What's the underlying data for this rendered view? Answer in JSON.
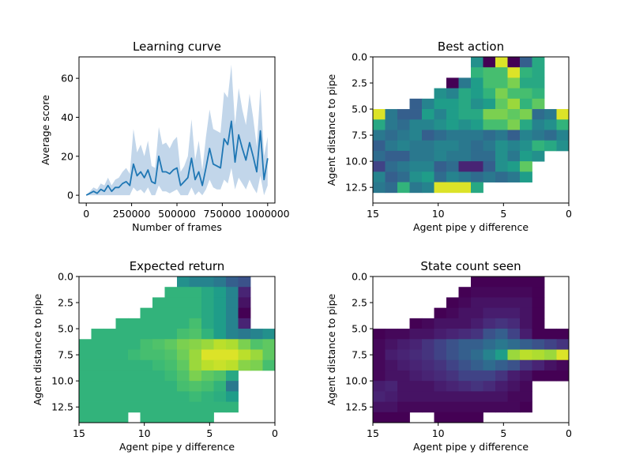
{
  "chart_data": [
    {
      "type": "line",
      "title": "Learning curve",
      "xlabel": "Number of frames",
      "ylabel": "Average score",
      "xlim": [
        -40000,
        1040000
      ],
      "ylim": [
        -4,
        71
      ],
      "xticks": [
        0,
        250000,
        500000,
        750000,
        1000000
      ],
      "yticks": [
        0,
        20,
        40,
        60
      ],
      "colors": {
        "line": "#1f77b4",
        "band": "#c2d6ea"
      },
      "series": [
        {
          "x": [
            0,
            20000,
            40000,
            60000,
            80000,
            100000,
            120000,
            140000,
            160000,
            180000,
            200000,
            220000,
            240000,
            260000,
            280000,
            300000,
            320000,
            340000,
            360000,
            380000,
            400000,
            420000,
            440000,
            460000,
            480000,
            500000,
            520000,
            540000,
            560000,
            580000,
            600000,
            620000,
            640000,
            660000,
            680000,
            700000,
            720000,
            740000,
            760000,
            780000,
            800000,
            820000,
            840000,
            860000,
            880000,
            900000,
            920000,
            940000,
            960000,
            980000,
            1000000
          ],
          "y": [
            0,
            1,
            2,
            1,
            3,
            2,
            5,
            2,
            4,
            4,
            6,
            7,
            5,
            16,
            10,
            12,
            9,
            13,
            7,
            6,
            20,
            12,
            12,
            11,
            13,
            14,
            5,
            7,
            9,
            19,
            8,
            12,
            5,
            14,
            24,
            16,
            15,
            14,
            29,
            26,
            38,
            17,
            31,
            24,
            18,
            27,
            20,
            12,
            33,
            8,
            19
          ],
          "lower": [
            0,
            0,
            0,
            0,
            0,
            0,
            0,
            0,
            0,
            0,
            0,
            0,
            0,
            4,
            2,
            3,
            1,
            4,
            0,
            0,
            5,
            2,
            2,
            1,
            2,
            3,
            0,
            0,
            0,
            4,
            0,
            2,
            0,
            3,
            8,
            4,
            3,
            3,
            8,
            6,
            14,
            3,
            9,
            6,
            3,
            8,
            4,
            1,
            10,
            0,
            5
          ],
          "upper": [
            0,
            2,
            4,
            3,
            6,
            5,
            9,
            5,
            8,
            9,
            12,
            14,
            11,
            34,
            22,
            26,
            20,
            28,
            15,
            14,
            35,
            26,
            27,
            24,
            28,
            30,
            12,
            15,
            20,
            39,
            18,
            28,
            13,
            30,
            44,
            34,
            33,
            32,
            53,
            50,
            67,
            36,
            55,
            44,
            36,
            52,
            40,
            25,
            55,
            20,
            30
          ]
        }
      ]
    },
    {
      "type": "heatmap",
      "title": "Best action",
      "xlabel": "Agent pipe y difference",
      "ylabel": "Agent distance to pipe",
      "colormap": "viridis",
      "xlim": [
        15,
        0
      ],
      "ylim": [
        14,
        0
      ],
      "xticks": [
        15,
        10,
        5,
        0
      ],
      "yticks": [
        0.0,
        2.5,
        5.0,
        7.5,
        10.0,
        12.5
      ],
      "cells": [
        [
          null,
          null,
          null,
          null,
          null,
          null,
          null,
          null,
          0.5,
          0.0,
          0.95,
          0.0,
          0.3,
          0.6,
          null,
          null
        ],
        [
          null,
          null,
          null,
          null,
          null,
          null,
          null,
          null,
          0.65,
          0.7,
          0.7,
          0.95,
          0.65,
          0.6,
          null,
          null
        ],
        [
          null,
          null,
          null,
          null,
          null,
          null,
          0.0,
          0.4,
          0.55,
          0.7,
          0.7,
          0.8,
          0.6,
          0.6,
          null,
          null
        ],
        [
          null,
          null,
          null,
          null,
          null,
          0.5,
          0.45,
          0.6,
          0.55,
          0.65,
          0.8,
          0.7,
          0.7,
          0.65,
          null,
          null
        ],
        [
          null,
          null,
          null,
          0.3,
          0.45,
          0.55,
          0.55,
          0.6,
          0.5,
          0.55,
          0.75,
          0.85,
          0.65,
          0.75,
          null,
          null
        ],
        [
          0.95,
          0.4,
          0.3,
          0.3,
          0.55,
          0.45,
          0.55,
          0.6,
          0.6,
          0.8,
          0.8,
          0.75,
          0.8,
          0.35,
          0.4,
          0.95
        ],
        [
          0.6,
          0.4,
          0.35,
          0.45,
          0.45,
          0.5,
          0.55,
          0.5,
          0.55,
          0.7,
          0.7,
          0.8,
          0.6,
          0.45,
          0.5,
          0.65
        ],
        [
          0.4,
          0.35,
          0.4,
          0.45,
          0.3,
          0.35,
          0.4,
          0.4,
          0.4,
          0.35,
          0.4,
          0.3,
          0.45,
          0.4,
          0.35,
          0.45
        ],
        [
          0.3,
          0.4,
          0.45,
          0.4,
          0.4,
          0.45,
          0.45,
          0.4,
          0.35,
          0.4,
          0.5,
          0.45,
          0.5,
          0.65,
          0.6,
          0.5
        ],
        [
          0.35,
          0.3,
          0.3,
          0.4,
          0.4,
          0.45,
          0.4,
          0.4,
          0.35,
          0.35,
          0.5,
          0.4,
          0.55,
          0.5,
          null,
          null
        ],
        [
          0.2,
          0.35,
          0.4,
          0.45,
          0.45,
          0.3,
          0.35,
          0.1,
          0.1,
          0.3,
          0.5,
          0.55,
          0.75,
          null,
          null,
          null
        ],
        [
          0.45,
          0.3,
          0.35,
          0.5,
          0.55,
          0.35,
          0.45,
          0.4,
          0.35,
          0.4,
          0.35,
          0.4,
          0.55,
          null,
          null,
          null
        ],
        [
          0.4,
          0.35,
          0.65,
          0.4,
          0.45,
          0.95,
          0.95,
          0.95,
          0.6,
          null,
          null,
          null,
          null,
          null,
          null,
          null
        ],
        [
          null,
          null,
          null,
          null,
          null,
          null,
          null,
          null,
          null,
          null,
          null,
          null,
          null,
          null,
          null,
          null
        ]
      ]
    },
    {
      "type": "heatmap",
      "title": "Expected return",
      "xlabel": "Agent pipe y difference",
      "ylabel": "Agent distance to pipe",
      "colormap": "viridis",
      "xlim": [
        15,
        0
      ],
      "ylim": [
        14,
        0
      ],
      "xticks": [
        15,
        10,
        5,
        0
      ],
      "yticks": [
        0.0,
        2.5,
        5.0,
        7.5,
        10.0,
        12.5
      ],
      "cells": [
        [
          null,
          null,
          null,
          null,
          null,
          null,
          null,
          null,
          0.5,
          0.45,
          0.45,
          0.4,
          0.3,
          0.25,
          null,
          null
        ],
        [
          null,
          null,
          null,
          null,
          null,
          null,
          null,
          0.65,
          0.65,
          0.65,
          0.6,
          0.55,
          0.45,
          0.1,
          null,
          null
        ],
        [
          null,
          null,
          null,
          null,
          null,
          null,
          0.65,
          0.65,
          0.65,
          0.65,
          0.6,
          0.55,
          0.45,
          0.05,
          null,
          null
        ],
        [
          null,
          null,
          null,
          null,
          null,
          0.65,
          0.65,
          0.65,
          0.65,
          0.65,
          0.6,
          0.55,
          0.45,
          0.0,
          null,
          null
        ],
        [
          null,
          null,
          null,
          0.65,
          0.65,
          0.65,
          0.65,
          0.65,
          0.65,
          0.7,
          0.6,
          0.55,
          0.45,
          0.1,
          null,
          null
        ],
        [
          null,
          0.65,
          0.65,
          0.65,
          0.65,
          0.65,
          0.65,
          0.65,
          0.7,
          0.72,
          0.65,
          0.55,
          0.45,
          0.4,
          0.45,
          0.5
        ],
        [
          0.65,
          0.65,
          0.65,
          0.65,
          0.65,
          0.7,
          0.72,
          0.75,
          0.8,
          0.82,
          0.85,
          0.9,
          0.88,
          0.8,
          0.72,
          0.75
        ],
        [
          0.65,
          0.65,
          0.65,
          0.65,
          0.68,
          0.7,
          0.7,
          0.72,
          0.78,
          0.85,
          0.95,
          0.95,
          0.95,
          0.9,
          0.85,
          0.75
        ],
        [
          0.65,
          0.65,
          0.65,
          0.65,
          0.65,
          0.65,
          0.68,
          0.7,
          0.75,
          0.85,
          0.9,
          0.92,
          0.9,
          0.82,
          0.8,
          0.7
        ],
        [
          0.65,
          0.65,
          0.65,
          0.65,
          0.65,
          0.65,
          0.65,
          0.68,
          0.72,
          0.8,
          0.75,
          0.72,
          0.6,
          null,
          null,
          null
        ],
        [
          0.65,
          0.65,
          0.65,
          0.65,
          0.65,
          0.65,
          0.65,
          0.65,
          0.7,
          0.72,
          0.7,
          0.65,
          0.4,
          null,
          null,
          null
        ],
        [
          0.65,
          0.65,
          0.65,
          0.65,
          0.65,
          0.65,
          0.65,
          0.65,
          0.65,
          0.68,
          0.65,
          0.62,
          0.55,
          null,
          null,
          null
        ],
        [
          0.65,
          0.65,
          0.65,
          0.65,
          0.65,
          0.65,
          0.65,
          0.65,
          0.65,
          0.65,
          0.65,
          0.65,
          0.65,
          null,
          null,
          null
        ],
        [
          0.65,
          0.65,
          0.65,
          0.65,
          null,
          0.65,
          0.65,
          0.65,
          0.65,
          0.65,
          0.65,
          null,
          null,
          null,
          null,
          null
        ]
      ]
    },
    {
      "type": "heatmap",
      "title": "State count seen",
      "xlabel": "Agent pipe y difference",
      "ylabel": "Agent distance to pipe",
      "colormap": "viridis",
      "xlim": [
        15,
        0
      ],
      "ylim": [
        14,
        0
      ],
      "xticks": [
        15,
        10,
        5,
        0
      ],
      "yticks": [
        0.0,
        2.5,
        5.0,
        7.5,
        10.0,
        12.5
      ],
      "cells": [
        [
          null,
          null,
          null,
          null,
          null,
          null,
          null,
          null,
          0.0,
          0.0,
          0.0,
          0.0,
          0.0,
          0.0,
          null,
          null
        ],
        [
          null,
          null,
          null,
          null,
          null,
          null,
          null,
          0.0,
          0.02,
          0.02,
          0.02,
          0.02,
          0.02,
          0.0,
          null,
          null
        ],
        [
          null,
          null,
          null,
          null,
          null,
          null,
          0.0,
          0.02,
          0.05,
          0.05,
          0.05,
          0.05,
          0.05,
          0.0,
          null,
          null
        ],
        [
          null,
          null,
          null,
          null,
          null,
          0.0,
          0.02,
          0.05,
          0.05,
          0.08,
          0.08,
          0.08,
          0.05,
          0.0,
          null,
          null
        ],
        [
          null,
          null,
          null,
          0.0,
          0.02,
          0.05,
          0.05,
          0.05,
          0.08,
          0.12,
          0.15,
          0.12,
          0.05,
          0.0,
          null,
          null
        ],
        [
          0.0,
          0.02,
          0.02,
          0.05,
          0.05,
          0.08,
          0.1,
          0.12,
          0.15,
          0.25,
          0.3,
          0.2,
          0.08,
          0.0,
          0.0,
          0.0
        ],
        [
          0.02,
          0.05,
          0.08,
          0.1,
          0.15,
          0.2,
          0.25,
          0.3,
          0.3,
          0.35,
          0.4,
          0.35,
          0.3,
          0.25,
          0.2,
          0.15
        ],
        [
          0.02,
          0.08,
          0.1,
          0.12,
          0.15,
          0.2,
          0.25,
          0.3,
          0.35,
          0.45,
          0.55,
          0.85,
          0.9,
          0.88,
          0.85,
          0.95
        ],
        [
          0.02,
          0.05,
          0.08,
          0.1,
          0.12,
          0.15,
          0.2,
          0.25,
          0.3,
          0.35,
          0.3,
          0.25,
          0.15,
          0.1,
          0.05,
          0.02
        ],
        [
          0.02,
          0.05,
          0.05,
          0.08,
          0.1,
          0.12,
          0.15,
          0.2,
          0.2,
          0.2,
          0.15,
          0.08,
          0.05,
          0.0,
          0.0,
          0.0
        ],
        [
          0.08,
          0.1,
          0.05,
          0.05,
          0.05,
          0.08,
          0.1,
          0.12,
          0.15,
          0.12,
          0.08,
          0.05,
          0.02,
          null,
          null,
          null
        ],
        [
          0.1,
          0.08,
          0.05,
          0.05,
          0.05,
          0.05,
          0.05,
          0.05,
          0.05,
          0.05,
          0.05,
          0.02,
          0.02,
          null,
          null,
          null
        ],
        [
          0.05,
          0.05,
          0.02,
          0.02,
          0.02,
          0.02,
          0.02,
          0.02,
          0.02,
          0.02,
          0.02,
          0.02,
          0.0,
          null,
          null,
          null
        ],
        [
          0.0,
          0.0,
          0.0,
          null,
          null,
          0.0,
          0.0,
          0.0,
          0.0,
          null,
          null,
          null,
          null,
          null,
          null,
          null
        ]
      ]
    }
  ]
}
